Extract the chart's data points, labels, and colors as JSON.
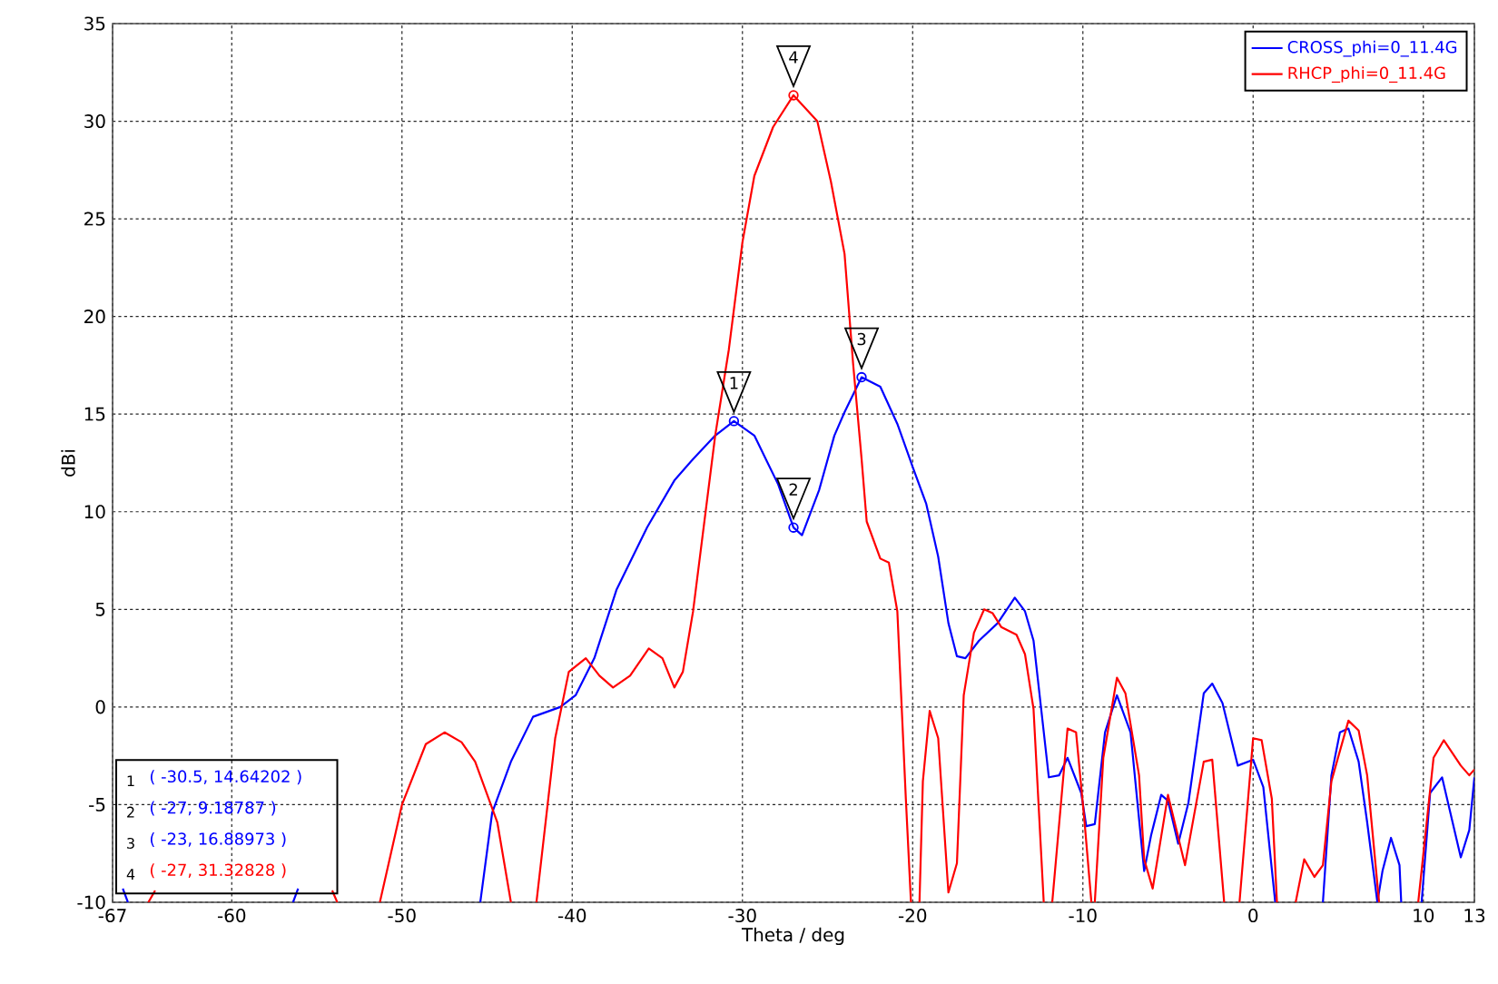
{
  "chart_data": {
    "type": "line",
    "xlabel": "Theta / deg",
    "ylabel": "dBi",
    "xlim": [
      -67,
      13
    ],
    "xticks": [
      -67,
      -60,
      -50,
      -40,
      -30,
      -20,
      -10,
      0,
      10,
      13
    ],
    "ylim": [
      -10,
      35
    ],
    "yticks": [
      -10,
      -5,
      0,
      5,
      10,
      15,
      20,
      25,
      30,
      35
    ],
    "grid": true,
    "legend": "top right",
    "series": [
      {
        "name": "CROSS_phi=0_11.4G",
        "color": "#0000ff",
        "marker": "none",
        "x": [
          -66.4,
          -66.1,
          -66.0,
          -56.4,
          -56.1,
          -50.0,
          -45.4,
          -44.7,
          -43.6,
          -42.3,
          -40.7,
          -39.8,
          -38.7,
          -37.4,
          -35.6,
          -34.0,
          -32.9,
          -31.6,
          -30.5,
          -29.3,
          -27.9,
          -27.0,
          -26.5,
          -25.5,
          -24.6,
          -24.0,
          -23.0,
          -21.9,
          -20.9,
          -20.0,
          -19.2,
          -18.5,
          -17.9,
          -17.4,
          -16.9,
          -16.1,
          -15.0,
          -14.0,
          -13.4,
          -12.9,
          -12.0,
          -11.4,
          -10.9,
          -10.1,
          -9.8,
          -9.3,
          -8.7,
          -8.0,
          -7.2,
          -6.4,
          -6.0,
          -5.4,
          -5.0,
          -4.4,
          -3.8,
          -2.9,
          -2.4,
          -1.8,
          -0.9,
          0.0,
          0.6,
          1.3,
          1.5,
          4.1,
          4.6,
          5.1,
          5.6,
          6.2,
          6.7,
          7.3,
          7.6,
          8.1,
          8.6,
          8.7,
          9.0,
          9.9,
          10.4,
          11.1,
          12.2,
          12.7,
          13.0
        ],
        "values": [
          -9.3,
          -10,
          null,
          -10,
          -9.3,
          null,
          -10,
          -5.4,
          -2.8,
          -0.5,
          0.0,
          0.6,
          2.5,
          6.0,
          9.2,
          11.6,
          12.7,
          13.9,
          14.64,
          13.9,
          11.4,
          9.19,
          8.8,
          11.1,
          13.9,
          15.1,
          16.89,
          16.4,
          14.5,
          12.3,
          10.4,
          7.7,
          4.3,
          2.6,
          2.5,
          3.4,
          4.3,
          5.6,
          4.9,
          3.4,
          -3.6,
          -3.5,
          -2.6,
          -4.4,
          -6.1,
          -6.0,
          -1.3,
          0.6,
          -1.3,
          -8.4,
          -6.6,
          -4.5,
          -4.8,
          -7.0,
          -4.9,
          0.7,
          1.2,
          0.2,
          -3.0,
          -2.7,
          -4.1,
          -10,
          null,
          -10,
          -3.5,
          -1.3,
          -1.1,
          -2.8,
          -5.9,
          -10,
          -8.4,
          -6.7,
          -8.1,
          -10,
          null,
          -10,
          -4.4,
          -3.6,
          -7.7,
          -6.3,
          -3.6
        ]
      },
      {
        "name": "RHCP_phi=0_11.4G",
        "color": "#ff0000",
        "marker": "none",
        "x": [
          -64.9,
          -64.5,
          -64.0,
          -54.1,
          -53.8,
          -52.5,
          -51.3,
          -50.0,
          -48.6,
          -47.5,
          -46.5,
          -45.7,
          -44.4,
          -43.6,
          -43.0,
          -42.1,
          -41.0,
          -40.2,
          -39.2,
          -38.4,
          -37.6,
          -36.6,
          -35.5,
          -34.7,
          -34.0,
          -33.5,
          -32.9,
          -31.6,
          -30.8,
          -30.0,
          -29.3,
          -28.2,
          -27.0,
          -25.6,
          -24.8,
          -24.0,
          -23.5,
          -23.0,
          -22.7,
          -21.9,
          -21.4,
          -20.9,
          -20.4,
          -20.1,
          -19.9,
          -19.6,
          -19.4,
          -19.0,
          -18.5,
          -17.9,
          -17.4,
          -17.0,
          -16.4,
          -15.8,
          -15.3,
          -14.8,
          -13.9,
          -13.4,
          -12.9,
          -12.3,
          -12.0,
          -11.8,
          -10.9,
          -10.4,
          -9.9,
          -9.5,
          -9.4,
          -9.3,
          -8.8,
          -8.0,
          -7.5,
          -6.7,
          -6.4,
          -5.9,
          -5.0,
          -4.0,
          -2.9,
          -2.4,
          -1.7,
          -1.2,
          -0.8,
          0.0,
          0.5,
          1.1,
          1.4,
          2.0,
          2.5,
          3.0,
          3.6,
          4.1,
          4.6,
          5.6,
          6.2,
          6.7,
          7.4,
          8.5,
          9.7,
          10.6,
          11.2,
          12.2,
          12.7,
          13.0
        ],
        "values": [
          -10,
          -9.4,
          null,
          -9.4,
          -10,
          null,
          -10,
          -5.0,
          -1.9,
          -1.3,
          -1.8,
          -2.8,
          -5.9,
          -10,
          null,
          -10,
          -1.6,
          1.8,
          2.5,
          1.6,
          1.0,
          1.6,
          3.0,
          2.5,
          1.0,
          1.8,
          4.9,
          13.9,
          18.3,
          23.8,
          27.2,
          29.7,
          31.33,
          30.0,
          26.9,
          23.2,
          17.6,
          12.7,
          9.5,
          7.6,
          7.4,
          4.9,
          -4.7,
          -10,
          null,
          -10,
          -3.8,
          -0.2,
          -1.6,
          -9.5,
          -8.0,
          0.6,
          3.8,
          5.0,
          4.8,
          4.1,
          3.7,
          2.7,
          -0.1,
          -10,
          null,
          -10,
          -1.1,
          -1.3,
          -5.9,
          -10,
          null,
          -10,
          -2.6,
          1.5,
          0.7,
          -3.5,
          -7.8,
          -9.3,
          -4.5,
          -8.1,
          -2.8,
          -2.7,
          -10,
          null,
          -10,
          -1.6,
          -1.7,
          -4.7,
          -10,
          null,
          -10,
          -7.8,
          -8.7,
          -8.1,
          -3.8,
          -0.7,
          -1.2,
          -3.5,
          -10,
          null,
          -10,
          -2.6,
          -1.7,
          -3.0,
          -3.5,
          -3.2
        ]
      },
      {
        "type": "scatter",
        "color": "#0000ff",
        "marker": "circle",
        "x": [
          -30.5,
          -27,
          -23
        ],
        "values": [
          14.64202,
          9.18787,
          16.88973
        ]
      },
      {
        "type": "scatter",
        "color": "#ff0000",
        "marker": "circle",
        "x": [
          -27
        ],
        "values": [
          31.32828
        ]
      }
    ],
    "annotations": [
      {
        "text": "1",
        "x": -30.5,
        "y": 14.64202
      },
      {
        "text": "2",
        "x": -27,
        "y": 9.18787
      },
      {
        "text": "3",
        "x": -23,
        "y": 16.88973
      },
      {
        "text": "4",
        "x": -27,
        "y": 31.32828
      },
      "( -30.5, 14.64202 )",
      "( -27, 9.18787 )",
      "( -23, 16.88973 )",
      "( -27, 31.32828 )"
    ]
  }
}
